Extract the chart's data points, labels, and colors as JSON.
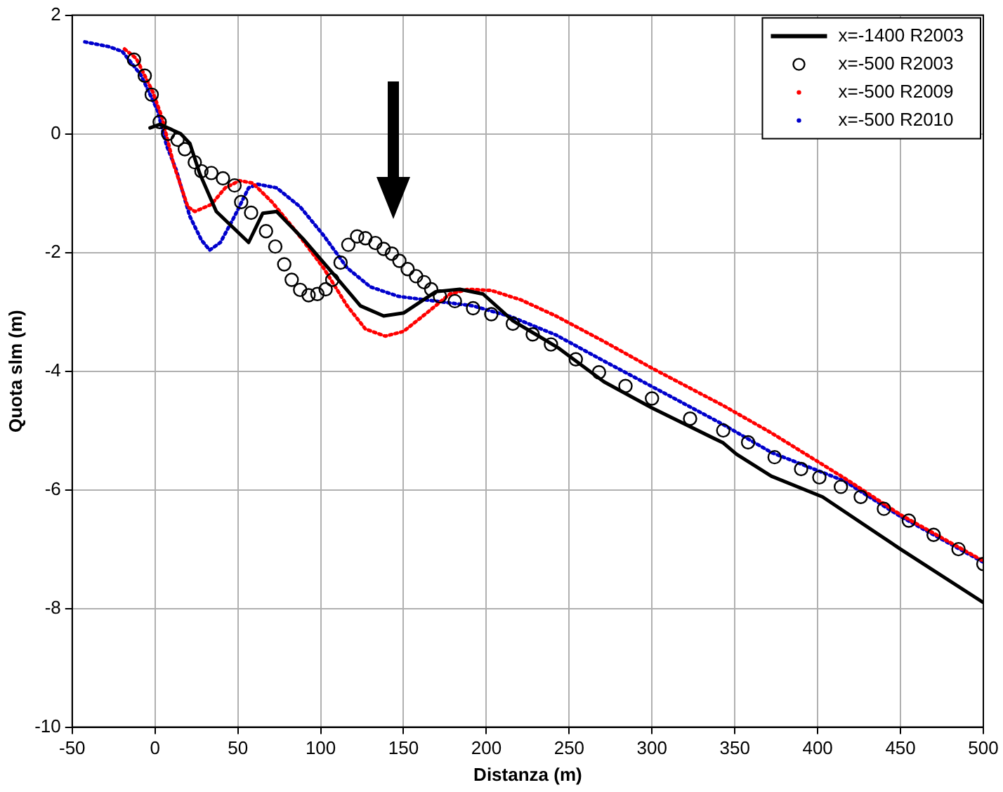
{
  "chart_data": {
    "type": "line",
    "xlabel": "Distanza (m)",
    "ylabel": "Quota slm (m)",
    "xlim": [
      -50,
      500
    ],
    "ylim": [
      -10,
      2
    ],
    "xticks": [
      -50,
      0,
      50,
      100,
      150,
      200,
      250,
      300,
      350,
      400,
      450,
      500
    ],
    "yticks": [
      -10,
      -8,
      -6,
      -4,
      -2,
      0,
      2
    ],
    "grid": true,
    "legend": "top right",
    "series": [
      {
        "name": "x=-1400 R2003",
        "color": "#000000",
        "marker": "none",
        "line_style": "solid",
        "x": [
          -3,
          3,
          15.5,
          21,
          27,
          37,
          56.5,
          65,
          73.4,
          90,
          107,
          124,
          138,
          150,
          169.5,
          184,
          198,
          216,
          243,
          271,
          300,
          343,
          351,
          372,
          403,
          450,
          500
        ],
        "values": [
          0.1,
          0.16,
          0,
          -0.16,
          -0.67,
          -1.31,
          -1.83,
          -1.34,
          -1.31,
          -1.79,
          -2.34,
          -2.9,
          -3.07,
          -3.02,
          -2.66,
          -2.62,
          -2.7,
          -3.15,
          -3.6,
          -4.18,
          -4.62,
          -5.21,
          -5.4,
          -5.77,
          -6.12,
          -7.0,
          -7.9
        ]
      },
      {
        "name": "x=-500 R2003",
        "type": "scatter",
        "color": "#000000",
        "marker": "circle",
        "x": [
          -12.7,
          -6.2,
          -2,
          2.8,
          7.9,
          13.6,
          18,
          24,
          28,
          34,
          41,
          48,
          52,
          58,
          67,
          72.6,
          78,
          82.5,
          87.6,
          92.7,
          98,
          103,
          107,
          112,
          116.7,
          122,
          127,
          133,
          138,
          143,
          147.5,
          152.5,
          157.6,
          162.4,
          166.7,
          172,
          181,
          192,
          203,
          216,
          228,
          239,
          254,
          268,
          284,
          300,
          323,
          343,
          358,
          374,
          390,
          401,
          414,
          426,
          440,
          455,
          470,
          485,
          500
        ],
        "values": [
          1.25,
          0.98,
          0.66,
          0.2,
          0,
          -0.1,
          -0.26,
          -0.48,
          -0.63,
          -0.66,
          -0.75,
          -0.87,
          -1.15,
          -1.33,
          -1.64,
          -1.9,
          -2.2,
          -2.46,
          -2.63,
          -2.72,
          -2.7,
          -2.62,
          -2.46,
          -2.17,
          -1.87,
          -1.73,
          -1.76,
          -1.84,
          -1.94,
          -2.02,
          -2.14,
          -2.28,
          -2.4,
          -2.5,
          -2.62,
          -2.74,
          -2.82,
          -2.94,
          -3.04,
          -3.2,
          -3.38,
          -3.55,
          -3.8,
          -4.02,
          -4.25,
          -4.46,
          -4.8,
          -5.0,
          -5.2,
          -5.45,
          -5.65,
          -5.79,
          -5.95,
          -6.12,
          -6.32,
          -6.52,
          -6.76,
          -7.0,
          -7.25
        ]
      },
      {
        "name": "x=-500 R2009",
        "color": "#ff0000",
        "marker": "none",
        "line_style": "dotted",
        "x": [
          -18.4,
          -11.3,
          -1.4,
          4.2,
          11.3,
          19.8,
          24,
          34,
          42.4,
          51,
          59,
          70.6,
          84.7,
          101.7,
          116,
          127,
          139,
          150,
          164,
          178,
          189,
          203,
          221,
          242,
          271,
          300,
          343,
          372,
          416,
          450,
          500
        ],
        "values": [
          1.43,
          1.27,
          0.71,
          0.28,
          -0.52,
          -1.23,
          -1.31,
          -1.19,
          -0.91,
          -0.79,
          -0.83,
          -1.15,
          -1.63,
          -2.26,
          -2.9,
          -3.29,
          -3.41,
          -3.33,
          -3.02,
          -2.7,
          -2.62,
          -2.64,
          -2.8,
          -3.07,
          -3.5,
          -3.95,
          -4.58,
          -5.04,
          -5.8,
          -6.42,
          -7.2
        ]
      },
      {
        "name": "x=-500 R2010",
        "color": "#0000cc",
        "marker": "none",
        "line_style": "dotted",
        "x": [
          -42.4,
          -28,
          -19.8,
          -8.5,
          1.4,
          7,
          12.7,
          21,
          28,
          33,
          39.5,
          48,
          56.5,
          62,
          73.4,
          87.6,
          101.7,
          116,
          130,
          147,
          169.5,
          192,
          214.7,
          242,
          271,
          300,
          343,
          372,
          416,
          450,
          500
        ],
        "values": [
          1.55,
          1.47,
          1.39,
          0.99,
          0.4,
          -0.2,
          -0.6,
          -1.39,
          -1.79,
          -1.96,
          -1.83,
          -1.39,
          -0.91,
          -0.85,
          -0.91,
          -1.23,
          -1.71,
          -2.26,
          -2.58,
          -2.74,
          -2.82,
          -2.9,
          -3.08,
          -3.39,
          -3.83,
          -4.26,
          -4.9,
          -5.37,
          -5.85,
          -6.45,
          -7.22
        ]
      }
    ]
  }
}
